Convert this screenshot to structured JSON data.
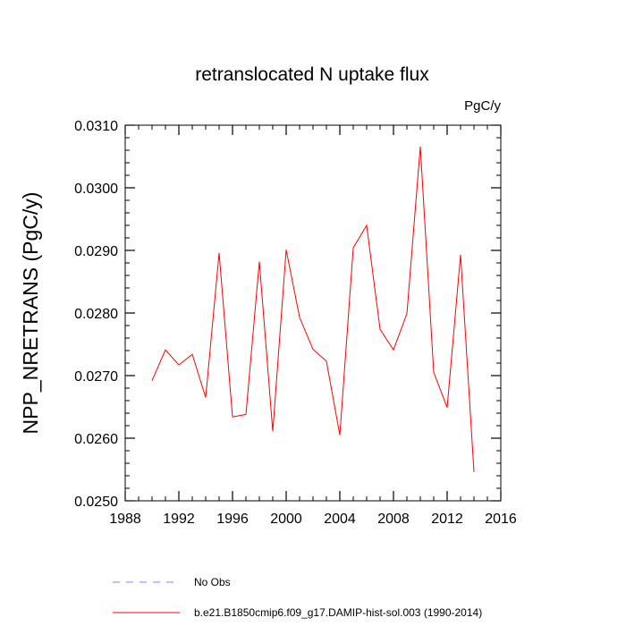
{
  "chart_data": {
    "type": "line",
    "title": "retranslocated N uptake flux",
    "units_label": "PgC/y",
    "ylabel": "NPP_NRETRANS  (PgC/y)",
    "xlabel": "",
    "xlim": [
      1988,
      2016
    ],
    "ylim": [
      0.025,
      0.031
    ],
    "x_ticks": [
      1988,
      1992,
      1996,
      2000,
      2004,
      2008,
      2012,
      2016
    ],
    "x_tick_labels": [
      "1988",
      "1992",
      "1996",
      "2000",
      "2004",
      "2008",
      "2012",
      "2016"
    ],
    "y_ticks": [
      0.025,
      0.026,
      0.027,
      0.028,
      0.029,
      0.03,
      0.031
    ],
    "y_tick_labels": [
      "0.0250",
      "0.0260",
      "0.0270",
      "0.0280",
      "0.0290",
      "0.0300",
      "0.0310"
    ],
    "grid": false,
    "series": [
      {
        "name": "b.e21.B1850cmip6.f09_g17.DAMIP-hist-sol.003 (1990-2014)",
        "color": "#ff0000",
        "x": [
          1990,
          1991,
          1992,
          1993,
          1994,
          1995,
          1996,
          1997,
          1998,
          1999,
          2000,
          2001,
          2002,
          2003,
          2004,
          2005,
          2006,
          2007,
          2008,
          2009,
          2010,
          2011,
          2012,
          2013,
          2014
        ],
        "values": [
          0.02692,
          0.02741,
          0.02717,
          0.02734,
          0.02665,
          0.02896,
          0.02634,
          0.02638,
          0.02882,
          0.02611,
          0.02901,
          0.02793,
          0.02742,
          0.02723,
          0.02605,
          0.02904,
          0.0294,
          0.02774,
          0.02741,
          0.02799,
          0.03066,
          0.02705,
          0.02649,
          0.02893,
          0.02546
        ]
      }
    ],
    "legend": [
      {
        "label": "No Obs",
        "color": "#8080ff",
        "style": "dashed"
      },
      {
        "label": "b.e21.B1850cmip6.f09_g17.DAMIP-hist-sol.003 (1990-2014)",
        "color": "#ff0000",
        "style": "solid"
      }
    ]
  }
}
